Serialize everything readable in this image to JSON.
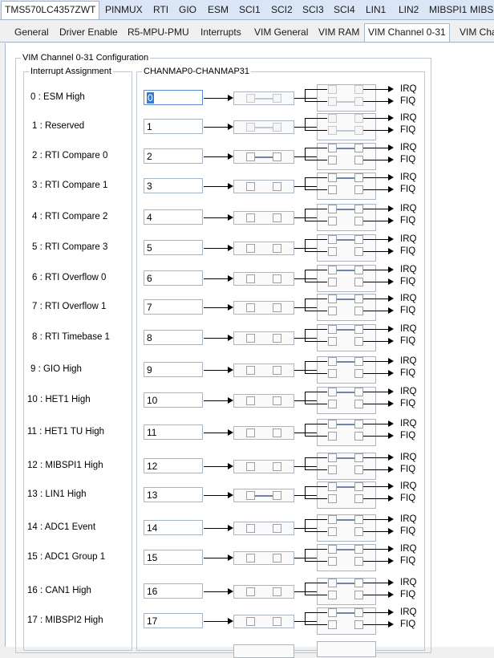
{
  "top_tabs": [
    "TMS570LC4357ZWT",
    "PINMUX",
    "RTI",
    "GIO",
    "ESM",
    "SCI1",
    "SCI2",
    "SCI3",
    "SCI4",
    "LIN1",
    "LIN2",
    "MIBSPI1",
    "MIBSP"
  ],
  "sub_tabs": [
    "General",
    "Driver Enable",
    "R5-MPU-PMU",
    "Interrupts",
    "VIM General",
    "VIM RAM",
    "VIM Channel 0-31",
    "VIM Cha"
  ],
  "active_top_tab": 0,
  "active_sub_tab": 6,
  "group_title": "VIM Channel 0-31 Configuration",
  "interrupt_group_title": "Interrupt Assignment",
  "chanmap_group_title": "CHANMAP0-CHANMAP31",
  "irq_label": "IRQ",
  "fiq_label": "FIQ",
  "channels": [
    {
      "label": "0 : ESM High",
      "value": "0",
      "mode": "fiq"
    },
    {
      "label": "1 : Reserved",
      "value": "1",
      "mode": "fiq"
    },
    {
      "label": "2 : RTI Compare 0",
      "value": "2",
      "mode": "irq"
    },
    {
      "label": "3 : RTI Compare 1",
      "value": "3",
      "mode": "irq"
    },
    {
      "label": "4 : RTI Compare 2",
      "value": "4",
      "mode": "irq"
    },
    {
      "label": "5 : RTI Compare 3",
      "value": "5",
      "mode": "irq"
    },
    {
      "label": "6 : RTI Overflow 0",
      "value": "6",
      "mode": "irq"
    },
    {
      "label": "7 : RTI Overflow 1",
      "value": "7",
      "mode": "irq"
    },
    {
      "label": "8 : RTI Timebase 1",
      "value": "8",
      "mode": "irq"
    },
    {
      "label": "9 : GIO High",
      "value": "9",
      "mode": "irq"
    },
    {
      "label": "10 : HET1 High",
      "value": "10",
      "mode": "irq"
    },
    {
      "label": "11 : HET1 TU High",
      "value": "11",
      "mode": "irq"
    },
    {
      "label": "12 : MIBSPI1 High",
      "value": "12",
      "mode": "irq"
    },
    {
      "label": "13 : LIN1 High",
      "value": "13",
      "mode": "irq"
    },
    {
      "label": "14 : ADC1 Event",
      "value": "14",
      "mode": "irq"
    },
    {
      "label": "15 : ADC1 Group 1",
      "value": "15",
      "mode": "irq"
    },
    {
      "label": "16 : CAN1 High",
      "value": "16",
      "mode": "irq"
    },
    {
      "label": "17 : MIBSPI2 High",
      "value": "17",
      "mode": "irq"
    }
  ],
  "enable_connected": [
    true,
    true,
    true,
    false,
    false,
    false,
    false,
    false,
    false,
    false,
    false,
    false,
    false,
    true,
    false,
    false,
    false,
    false
  ]
}
